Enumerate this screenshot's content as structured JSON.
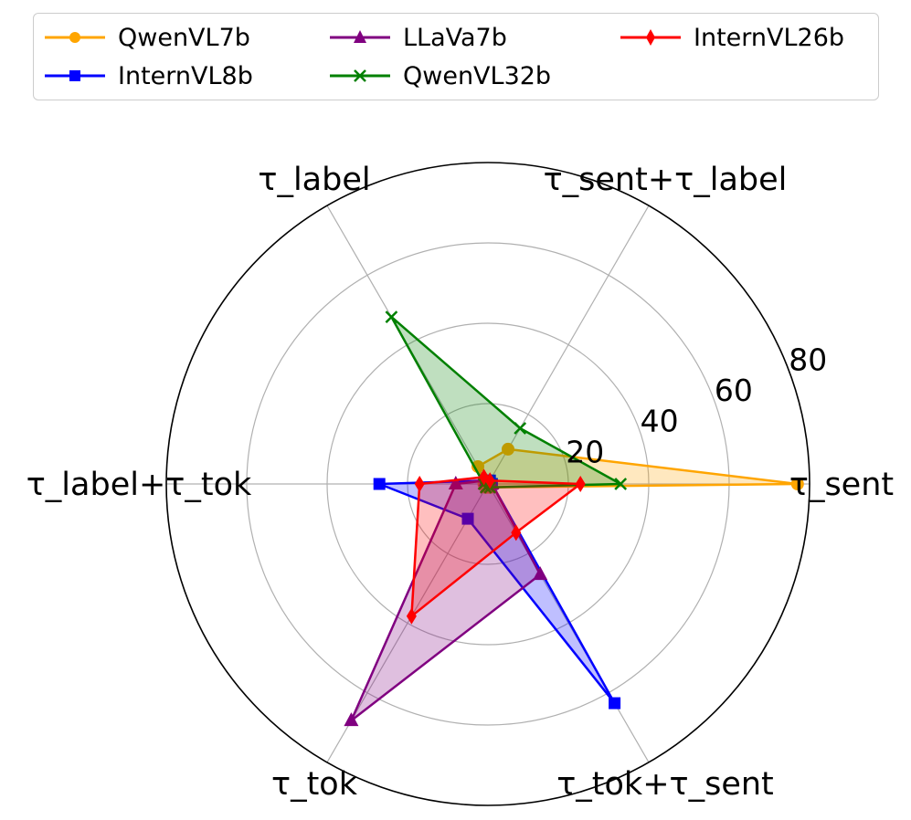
{
  "chart_data": {
    "type": "radar",
    "axes": [
      "τ_sent",
      "τ_sent+τ_label",
      "τ_label",
      "τ_label+τ_tok",
      "τ_tok",
      "τ_tok+τ_sent"
    ],
    "rticks": [
      "20",
      "40",
      "60",
      "80"
    ],
    "rlim": [
      0,
      80
    ],
    "series": [
      {
        "name": "QwenVL7b",
        "color": "#FFA500",
        "marker": "circle",
        "values": [
          77,
          10,
          5,
          1,
          1,
          1
        ]
      },
      {
        "name": "InternVL8b",
        "color": "#0000FF",
        "marker": "square",
        "values": [
          1,
          1,
          1,
          27,
          10,
          63
        ]
      },
      {
        "name": "LLaVa7b",
        "color": "#800080",
        "marker": "triangle",
        "values": [
          1,
          1,
          1,
          8,
          68,
          26
        ]
      },
      {
        "name": "QwenVL32b",
        "color": "#008000",
        "marker": "x",
        "values": [
          33,
          16,
          48,
          1,
          1,
          1
        ]
      },
      {
        "name": "InternVL26b",
        "color": "#FF0000",
        "marker": "diamond",
        "values": [
          23,
          1,
          2,
          17,
          38,
          14
        ]
      }
    ],
    "legend_position": "top"
  }
}
